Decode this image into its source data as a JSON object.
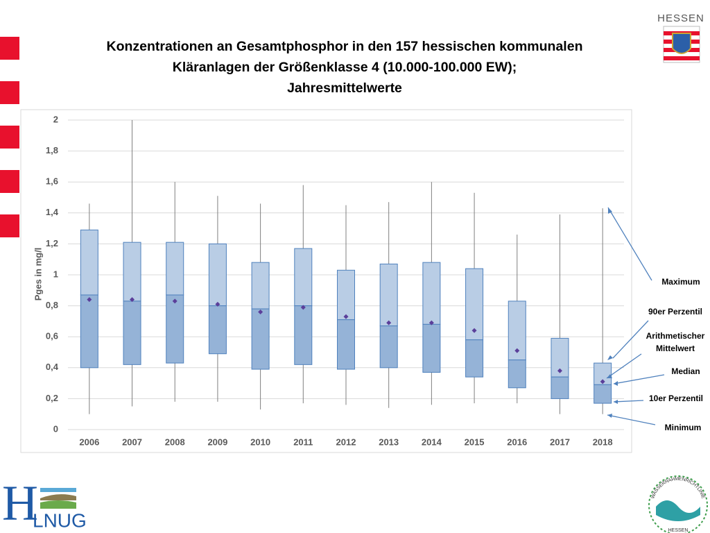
{
  "chart_data": {
    "type": "box",
    "title": [
      "Konzentrationen an Gesamtphosphor in den 157 hessischen kommunalen",
      "Kläranlagen der Größenklasse 4 (10.000-100.000 EW);",
      "Jahresmittelwerte"
    ],
    "y_label": "Pges in mg/l",
    "categories": [
      "2006",
      "2007",
      "2008",
      "2009",
      "2010",
      "2011",
      "2012",
      "2013",
      "2014",
      "2015",
      "2016",
      "2017",
      "2018"
    ],
    "maximum": [
      1.46,
      2.0,
      1.6,
      1.51,
      1.46,
      1.58,
      1.45,
      1.47,
      1.6,
      1.53,
      1.26,
      1.39,
      1.43
    ],
    "p90": [
      1.29,
      1.21,
      1.21,
      1.2,
      1.08,
      1.17,
      1.03,
      1.07,
      1.08,
      1.04,
      0.83,
      0.59,
      0.43
    ],
    "median": [
      0.87,
      0.83,
      0.87,
      0.8,
      0.78,
      0.8,
      0.71,
      0.67,
      0.68,
      0.58,
      0.45,
      0.34,
      0.29
    ],
    "p10": [
      0.4,
      0.42,
      0.43,
      0.49,
      0.39,
      0.42,
      0.39,
      0.4,
      0.37,
      0.34,
      0.27,
      0.2,
      0.17
    ],
    "minimum": [
      0.1,
      0.15,
      0.18,
      0.18,
      0.13,
      0.17,
      0.16,
      0.14,
      0.16,
      0.17,
      0.17,
      0.1,
      0.1
    ],
    "mean": [
      0.84,
      0.84,
      0.83,
      0.81,
      0.76,
      0.79,
      0.73,
      0.69,
      0.69,
      0.64,
      0.51,
      0.38,
      0.31
    ],
    "ylim": [
      0,
      2
    ],
    "yticks": [
      0,
      {
        "value": 0.2,
        "label": "0,2"
      },
      {
        "value": 0.4,
        "label": "0,4"
      },
      {
        "value": 0.6,
        "label": "0,6"
      },
      {
        "value": 0.8,
        "label": "0,8"
      },
      1,
      {
        "value": 1.2,
        "label": "1,2"
      },
      {
        "value": 1.4,
        "label": "1,4"
      },
      {
        "value": 1.6,
        "label": "1,6"
      },
      {
        "value": 1.8,
        "label": "1,8"
      },
      2
    ],
    "grid": true,
    "colors": {
      "upper_box": "#b9cde5",
      "lower_box": "#95b3d7",
      "box_edge": "#4f81bd",
      "whisker": "#7f7f7f",
      "mean": "#5b3f9a"
    },
    "annotations": [
      "Maximum",
      "90er Perzentil",
      "Arithmetischer",
      "Mittelwert",
      "Median",
      "10er Perzentil",
      "Minimum"
    ]
  },
  "logos": {
    "hessen": "HESSEN",
    "hlnug_h": "H",
    "hlnug_rest": "LNUG",
    "wrrl_top": "WASSERRAHMENRICHTLINIE",
    "wrrl_bottom": "HESSEN"
  }
}
